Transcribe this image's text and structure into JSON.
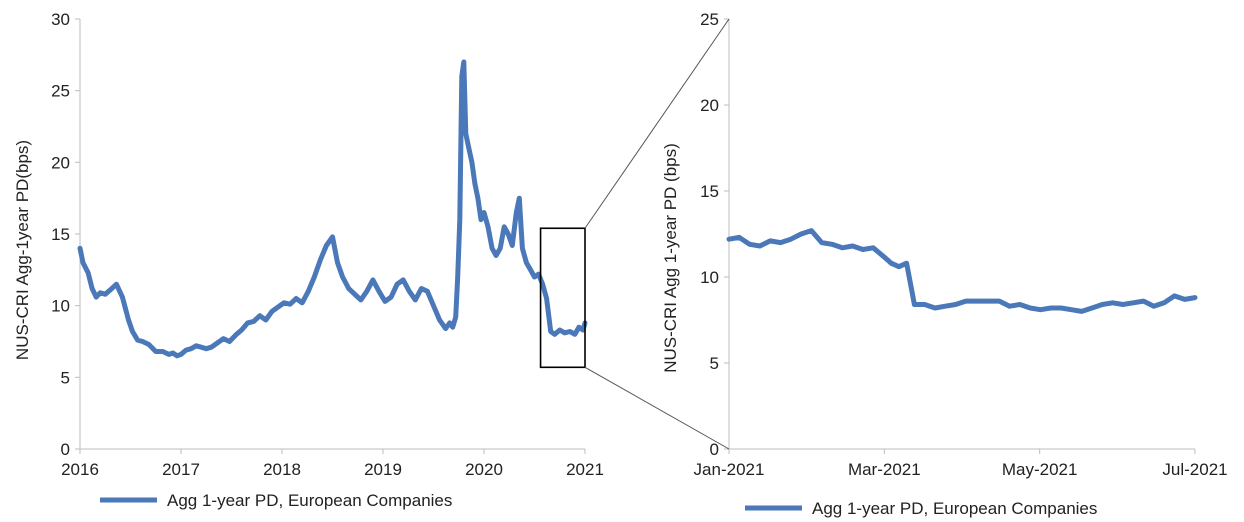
{
  "chart_data": [
    {
      "type": "line",
      "ylabel": "NUS-CRI Agg-1year PD(bps)",
      "xlabel": "",
      "ylim": [
        0,
        30
      ],
      "yticks": [
        "0",
        "5",
        "10",
        "15",
        "20",
        "25",
        "30"
      ],
      "xlim": [
        2016,
        2021
      ],
      "xticks": [
        "2016",
        "2017",
        "2018",
        "2019",
        "2020",
        "2021"
      ],
      "legend_position": "bottom-left",
      "series": [
        {
          "name": "Agg 1-year PD, European Companies",
          "color": "#4a78b8",
          "x": [
            2016.0,
            2016.03,
            2016.08,
            2016.12,
            2016.16,
            2016.2,
            2016.25,
            2016.3,
            2016.36,
            2016.42,
            2016.48,
            2016.52,
            2016.57,
            2016.62,
            2016.68,
            2016.75,
            2016.82,
            2016.88,
            2016.92,
            2016.96,
            2017.0,
            2017.05,
            2017.1,
            2017.15,
            2017.2,
            2017.25,
            2017.3,
            2017.36,
            2017.42,
            2017.48,
            2017.55,
            2017.6,
            2017.66,
            2017.72,
            2017.78,
            2017.84,
            2017.9,
            2017.96,
            2018.02,
            2018.08,
            2018.14,
            2018.2,
            2018.26,
            2018.32,
            2018.38,
            2018.44,
            2018.5,
            2018.55,
            2018.6,
            2018.66,
            2018.72,
            2018.78,
            2018.84,
            2018.9,
            2018.96,
            2019.02,
            2019.08,
            2019.14,
            2019.2,
            2019.26,
            2019.32,
            2019.38,
            2019.44,
            2019.5,
            2019.56,
            2019.62,
            2019.66,
            2019.69,
            2019.72,
            2019.74,
            2019.76,
            2019.78,
            2019.8,
            2019.82,
            2019.85,
            2019.88,
            2019.91,
            2019.94,
            2019.97,
            2020.0,
            2020.04,
            2020.08,
            2020.12,
            2020.16,
            2020.2,
            2020.24,
            2020.28,
            2020.32,
            2020.35,
            2020.38,
            2020.42,
            2020.46,
            2020.5,
            2020.54,
            2020.58,
            2020.62,
            2020.66,
            2020.7,
            2020.75,
            2020.8,
            2020.85,
            2020.9,
            2020.94,
            2020.98,
            2021.0
          ],
          "values": [
            14.0,
            13.0,
            12.3,
            11.2,
            10.6,
            10.9,
            10.8,
            11.1,
            11.5,
            10.6,
            9.0,
            8.2,
            7.6,
            7.5,
            7.3,
            6.8,
            6.8,
            6.6,
            6.7,
            6.5,
            6.6,
            6.9,
            7.0,
            7.2,
            7.1,
            7.0,
            7.1,
            7.4,
            7.7,
            7.5,
            8.0,
            8.3,
            8.8,
            8.9,
            9.3,
            9.0,
            9.6,
            9.9,
            10.2,
            10.1,
            10.5,
            10.2,
            11.0,
            12.0,
            13.2,
            14.2,
            14.8,
            13.0,
            12.0,
            11.2,
            10.8,
            10.4,
            11.0,
            11.8,
            11.0,
            10.3,
            10.6,
            11.5,
            11.8,
            11.0,
            10.4,
            11.2,
            11.0,
            10.0,
            9.0,
            8.4,
            8.8,
            8.5,
            9.2,
            12.0,
            16.0,
            26.0,
            27.0,
            22.0,
            21.0,
            20.0,
            18.5,
            17.5,
            16.0,
            16.5,
            15.5,
            14.0,
            13.5,
            14.0,
            15.5,
            15.0,
            14.2,
            16.5,
            17.5,
            14.0,
            13.0,
            12.5,
            12.0,
            12.2,
            11.5,
            10.5,
            8.2,
            8.0,
            8.3,
            8.1,
            8.2,
            8.0,
            8.5,
            8.3,
            8.8
          ]
        }
      ]
    },
    {
      "type": "line",
      "ylabel": "NUS-CRI Agg 1-year PD (bps)",
      "xlabel": "",
      "ylim": [
        0,
        25
      ],
      "yticks": [
        "0",
        "5",
        "10",
        "15",
        "20",
        "25"
      ],
      "xlim": [
        "2021-01-01",
        "2021-07-01"
      ],
      "xticks": [
        "Jan-2021",
        "Mar-2021",
        "May-2021",
        "Jul-2021"
      ],
      "legend_position": "bottom-left",
      "series": [
        {
          "name": "Agg 1-year PD, European Companies",
          "color": "#4a78b8",
          "x": [
            "2021-01-01",
            "2021-01-05",
            "2021-01-09",
            "2021-01-13",
            "2021-01-17",
            "2021-01-21",
            "2021-01-25",
            "2021-01-29",
            "2021-02-02",
            "2021-02-06",
            "2021-02-10",
            "2021-02-14",
            "2021-02-18",
            "2021-02-22",
            "2021-02-26",
            "2021-03-02",
            "2021-03-05",
            "2021-03-08",
            "2021-03-11",
            "2021-03-14",
            "2021-03-18",
            "2021-03-22",
            "2021-03-26",
            "2021-03-30",
            "2021-04-03",
            "2021-04-07",
            "2021-04-12",
            "2021-04-16",
            "2021-04-20",
            "2021-04-24",
            "2021-04-28",
            "2021-05-02",
            "2021-05-06",
            "2021-05-10",
            "2021-05-14",
            "2021-05-18",
            "2021-05-22",
            "2021-05-26",
            "2021-05-30",
            "2021-06-03",
            "2021-06-07",
            "2021-06-11",
            "2021-06-15",
            "2021-06-19",
            "2021-06-23",
            "2021-06-27",
            "2021-07-01"
          ],
          "values": [
            12.2,
            12.3,
            11.9,
            11.8,
            12.1,
            12.0,
            12.2,
            12.5,
            12.7,
            12.0,
            11.9,
            11.7,
            11.8,
            11.6,
            11.7,
            11.2,
            10.8,
            10.6,
            10.8,
            8.4,
            8.4,
            8.2,
            8.3,
            8.4,
            8.6,
            8.6,
            8.6,
            8.6,
            8.3,
            8.4,
            8.2,
            8.1,
            8.2,
            8.2,
            8.1,
            8.0,
            8.2,
            8.4,
            8.5,
            8.4,
            8.5,
            8.6,
            8.3,
            8.5,
            8.9,
            8.7,
            8.8
          ]
        }
      ]
    }
  ]
}
